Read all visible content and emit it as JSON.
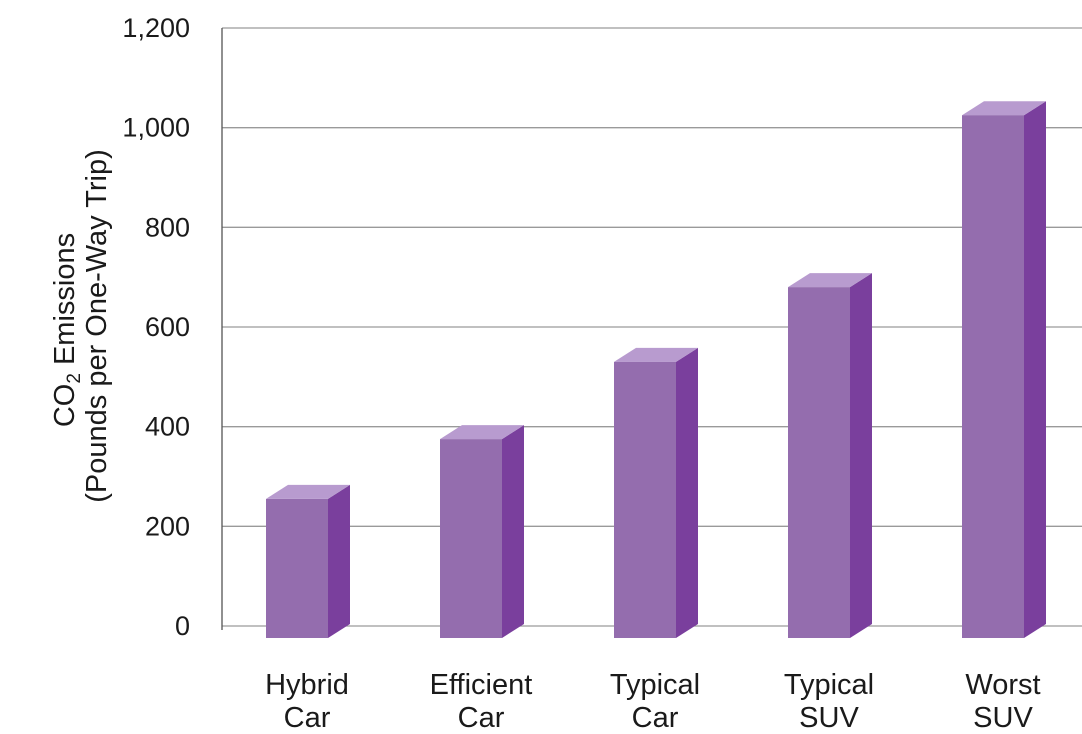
{
  "chart_data": {
    "type": "bar",
    "style": "3d-column",
    "categories": [
      [
        "Hybrid",
        "Car"
      ],
      [
        "Efficient",
        "Car"
      ],
      [
        "Typical",
        "Car"
      ],
      [
        "Typical",
        "SUV"
      ],
      [
        "Worst",
        "SUV"
      ]
    ],
    "values": [
      255,
      375,
      530,
      680,
      1025
    ],
    "ylabel": {
      "line1_main": "CO",
      "line1_sub": "2",
      "line1_rest": " Emissions",
      "line2": "(Pounds per One-Way Trip)"
    },
    "ylim": [
      0,
      1200
    ],
    "yticks": [
      0,
      200,
      400,
      600,
      800,
      1000,
      1200
    ],
    "ytick_labels": [
      "0",
      "200",
      "400",
      "600",
      "800",
      "1,000",
      "1,200"
    ],
    "grid": true,
    "legend": "none",
    "colors": {
      "front": "#946dae",
      "side": "#7a3f9d",
      "top": "#b89bcf",
      "grid": "#9a9a9a"
    }
  }
}
